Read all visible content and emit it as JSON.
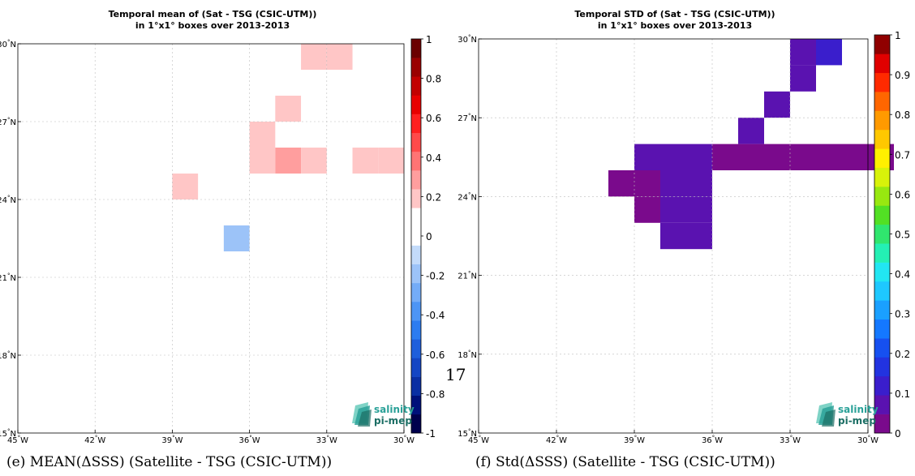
{
  "page_number": "17",
  "captions": [
    "(e) MEAN(ΔSSS) (Satellite - TSG (CSIC-UTM))",
    "(f) Std(ΔSSS) (Satellite - TSG (CSIC-UTM))"
  ],
  "logo": {
    "line1": "salinity",
    "line2": "pi-mep",
    "accent": "#2aa198"
  },
  "chart_data": [
    {
      "type": "heatmap",
      "title": "Temporal mean of (Sat - TSG (CSIC-UTM))",
      "subtitle": "in 1°x1° boxes over 2013-2013",
      "xlim": [
        -45,
        -30
      ],
      "ylim": [
        15,
        30
      ],
      "x_ticks": [
        -45,
        -42,
        -39,
        -36,
        -33,
        -30
      ],
      "y_ticks": [
        15,
        18,
        21,
        24,
        27,
        30
      ],
      "x_tick_labels": [
        "45°W",
        "42°W",
        "39°W",
        "36°W",
        "33°W",
        "30°W"
      ],
      "y_tick_labels": [
        "15°N",
        "18°N",
        "21°N",
        "24°N",
        "27°N",
        "30°N"
      ],
      "grid": true,
      "colorbar": {
        "min": -1,
        "max": 1,
        "ticks": [
          -1,
          -0.8,
          -0.6,
          -0.4,
          -0.2,
          0,
          0.2,
          0.4,
          0.6,
          0.8,
          1
        ],
        "tick_labels": [
          "-1",
          "-0.8",
          "-0.6",
          "-0.4",
          "-0.2",
          "0",
          "0.2",
          "0.4",
          "0.6",
          "0.8",
          "1"
        ],
        "colors": [
          "#00004d",
          "#00107a",
          "#0a2fa3",
          "#1446c4",
          "#1e5fdc",
          "#2c7cf0",
          "#4d95f5",
          "#74acf7",
          "#9cc3f8",
          "#c3dbfa",
          "#ffffff",
          "#ffffff",
          "#ffc6c6",
          "#ff9e9e",
          "#ff7474",
          "#ff4a4a",
          "#ff2020",
          "#e80000",
          "#c20000",
          "#9a0000",
          "#6b0000"
        ]
      },
      "cells": [
        {
          "lon": -34,
          "lat": 29,
          "value": 0.15
        },
        {
          "lon": -33,
          "lat": 29,
          "value": 0.15
        },
        {
          "lon": -35,
          "lat": 27,
          "value": 0.15
        },
        {
          "lon": -36,
          "lat": 26,
          "value": 0.15
        },
        {
          "lon": -36,
          "lat": 25,
          "value": 0.15
        },
        {
          "lon": -35,
          "lat": 25,
          "value": 0.25
        },
        {
          "lon": -34,
          "lat": 25,
          "value": 0.15
        },
        {
          "lon": -32,
          "lat": 25,
          "value": 0.15
        },
        {
          "lon": -31,
          "lat": 25,
          "value": 0.15
        },
        {
          "lon": -39,
          "lat": 24,
          "value": 0.15
        },
        {
          "lon": -37,
          "lat": 22,
          "value": -0.15
        }
      ]
    },
    {
      "type": "heatmap",
      "title": "Temporal STD of (Sat - TSG (CSIC-UTM))",
      "subtitle": "in 1°x1° boxes over 2013-2013",
      "xlim": [
        -45,
        -30
      ],
      "ylim": [
        15,
        30
      ],
      "x_ticks": [
        -45,
        -42,
        -39,
        -36,
        -33,
        -30
      ],
      "y_ticks": [
        15,
        18,
        21,
        24,
        27,
        30
      ],
      "x_tick_labels": [
        "45°W",
        "42°W",
        "39°W",
        "36°W",
        "33°W",
        "30°W"
      ],
      "y_tick_labels": [
        "15°N",
        "18°N",
        "21°N",
        "24°N",
        "27°N",
        "30°N"
      ],
      "grid": true,
      "colorbar": {
        "min": 0,
        "max": 1,
        "ticks": [
          0,
          0.1,
          0.2,
          0.3,
          0.4,
          0.5,
          0.6,
          0.7,
          0.8,
          0.9,
          1
        ],
        "tick_labels": [
          "0",
          "0.1",
          "0.2",
          "0.3",
          "0.4",
          "0.5",
          "0.6",
          "0.7",
          "0.8",
          "0.9",
          "1"
        ],
        "colors": [
          "#7a0a8c",
          "#5a12b0",
          "#3a1ecc",
          "#2233e0",
          "#1650f0",
          "#1478ff",
          "#1aa0ff",
          "#1ec8ff",
          "#22e6f2",
          "#24f0b4",
          "#30e66e",
          "#52e024",
          "#98e810",
          "#d8f20a",
          "#fff000",
          "#ffc800",
          "#ff9a00",
          "#ff6600",
          "#ff2a00",
          "#e00000",
          "#900000"
        ]
      },
      "cells": [
        {
          "lon": -33,
          "lat": 29,
          "value": 0.07
        },
        {
          "lon": -32,
          "lat": 29,
          "value": 0.12
        },
        {
          "lon": -33,
          "lat": 28,
          "value": 0.07
        },
        {
          "lon": -34,
          "lat": 27,
          "value": 0.07
        },
        {
          "lon": -35,
          "lat": 26,
          "value": 0.07
        },
        {
          "lon": -39,
          "lat": 25,
          "value": 0.07
        },
        {
          "lon": -38,
          "lat": 25,
          "value": 0.07
        },
        {
          "lon": -37,
          "lat": 25,
          "value": 0.07
        },
        {
          "lon": -36,
          "lat": 25,
          "value": 0.03
        },
        {
          "lon": -35,
          "lat": 25,
          "value": 0.03
        },
        {
          "lon": -34,
          "lat": 25,
          "value": 0.03
        },
        {
          "lon": -33,
          "lat": 25,
          "value": 0.03
        },
        {
          "lon": -32,
          "lat": 25,
          "value": 0.03
        },
        {
          "lon": -31,
          "lat": 25,
          "value": 0.03
        },
        {
          "lon": -30,
          "lat": 25,
          "value": 0.03
        },
        {
          "lon": -40,
          "lat": 24,
          "value": 0.03
        },
        {
          "lon": -39,
          "lat": 24,
          "value": 0.03
        },
        {
          "lon": -38,
          "lat": 24,
          "value": 0.07
        },
        {
          "lon": -37,
          "lat": 24,
          "value": 0.07
        },
        {
          "lon": -39,
          "lat": 23,
          "value": 0.03
        },
        {
          "lon": -38,
          "lat": 23,
          "value": 0.07
        },
        {
          "lon": -37,
          "lat": 23,
          "value": 0.07
        },
        {
          "lon": -38,
          "lat": 22,
          "value": 0.07
        },
        {
          "lon": -37,
          "lat": 22,
          "value": 0.07
        }
      ]
    }
  ]
}
